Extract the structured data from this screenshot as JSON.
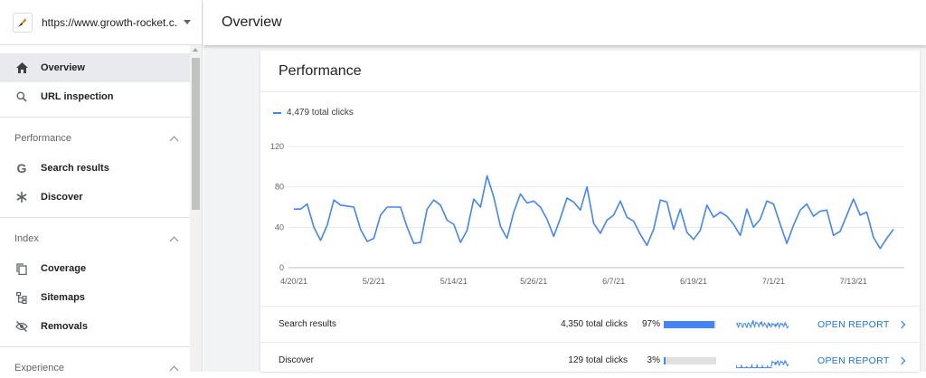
{
  "property": {
    "url": "https://www.growth-rocket.c...",
    "logo_icon": "rocket-icon"
  },
  "header": {
    "title": "Overview"
  },
  "sidebar": {
    "items": [
      {
        "label": "Overview",
        "icon": "home-icon",
        "active": true
      },
      {
        "label": "URL inspection",
        "icon": "search-icon"
      }
    ],
    "sections": [
      {
        "title": "Performance",
        "items": [
          {
            "label": "Search results",
            "icon": "google-g-icon"
          },
          {
            "label": "Discover",
            "icon": "asterisk-icon"
          }
        ]
      },
      {
        "title": "Index",
        "items": [
          {
            "label": "Coverage",
            "icon": "file-copy-icon"
          },
          {
            "label": "Sitemaps",
            "icon": "sitemap-icon"
          },
          {
            "label": "Removals",
            "icon": "eye-off-icon"
          }
        ]
      },
      {
        "title": "Experience",
        "items": []
      }
    ]
  },
  "performance": {
    "title": "Performance",
    "legend": "4,479 total clicks",
    "rows": [
      {
        "name": "Search results",
        "clicks": "4,350 total clicks",
        "pct": "97%",
        "fraction": 0.97,
        "action": "OPEN REPORT"
      },
      {
        "name": "Discover",
        "clicks": "129 total clicks",
        "pct": "3%",
        "fraction": 0.03,
        "action": "OPEN REPORT"
      }
    ]
  },
  "chart_data": {
    "type": "line",
    "x_tick_labels": [
      "4/20/21",
      "5/2/21",
      "5/14/21",
      "5/26/21",
      "6/7/21",
      "6/19/21",
      "7/1/21",
      "7/13/21"
    ],
    "y_ticks": [
      0,
      40,
      80,
      120
    ],
    "ylim": [
      0,
      120
    ],
    "color": "#4285f4",
    "series": [
      {
        "name": "4,479 total clicks",
        "values": [
          58,
          58,
          63,
          40,
          27,
          42,
          67,
          62,
          61,
          60,
          38,
          26,
          29,
          52,
          60,
          60,
          60,
          40,
          24,
          25,
          58,
          67,
          62,
          47,
          43,
          25,
          37,
          68,
          60,
          91,
          70,
          41,
          29,
          55,
          73,
          64,
          66,
          60,
          48,
          31,
          49,
          69,
          65,
          57,
          80,
          44,
          34,
          47,
          52,
          66,
          50,
          46,
          33,
          22,
          38,
          67,
          65,
          38,
          58,
          35,
          28,
          37,
          62,
          50,
          55,
          51,
          43,
          32,
          58,
          40,
          48,
          66,
          63,
          43,
          24,
          42,
          57,
          63,
          51,
          56,
          57,
          32,
          36,
          52,
          68,
          52,
          55,
          30,
          19,
          29,
          38
        ]
      }
    ]
  }
}
